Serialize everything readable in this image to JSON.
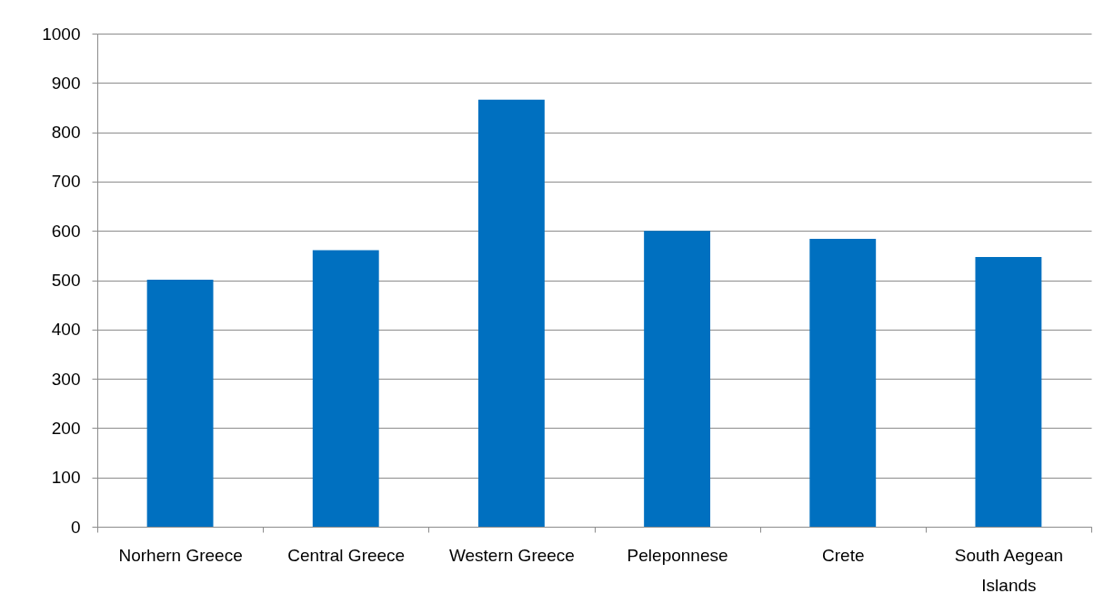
{
  "chart_data": {
    "type": "bar",
    "categories": [
      "Norhern Greece",
      "Central Greece",
      "Western Greece",
      "Peleponnese",
      "Crete",
      "South Aegean Islands"
    ],
    "values": [
      501,
      561,
      866,
      600,
      584,
      547
    ],
    "color": "#0070c0",
    "ylim": [
      0,
      1000
    ],
    "yticks": [
      0,
      100,
      200,
      300,
      400,
      500,
      600,
      700,
      800,
      900,
      1000
    ],
    "grid": "y"
  }
}
